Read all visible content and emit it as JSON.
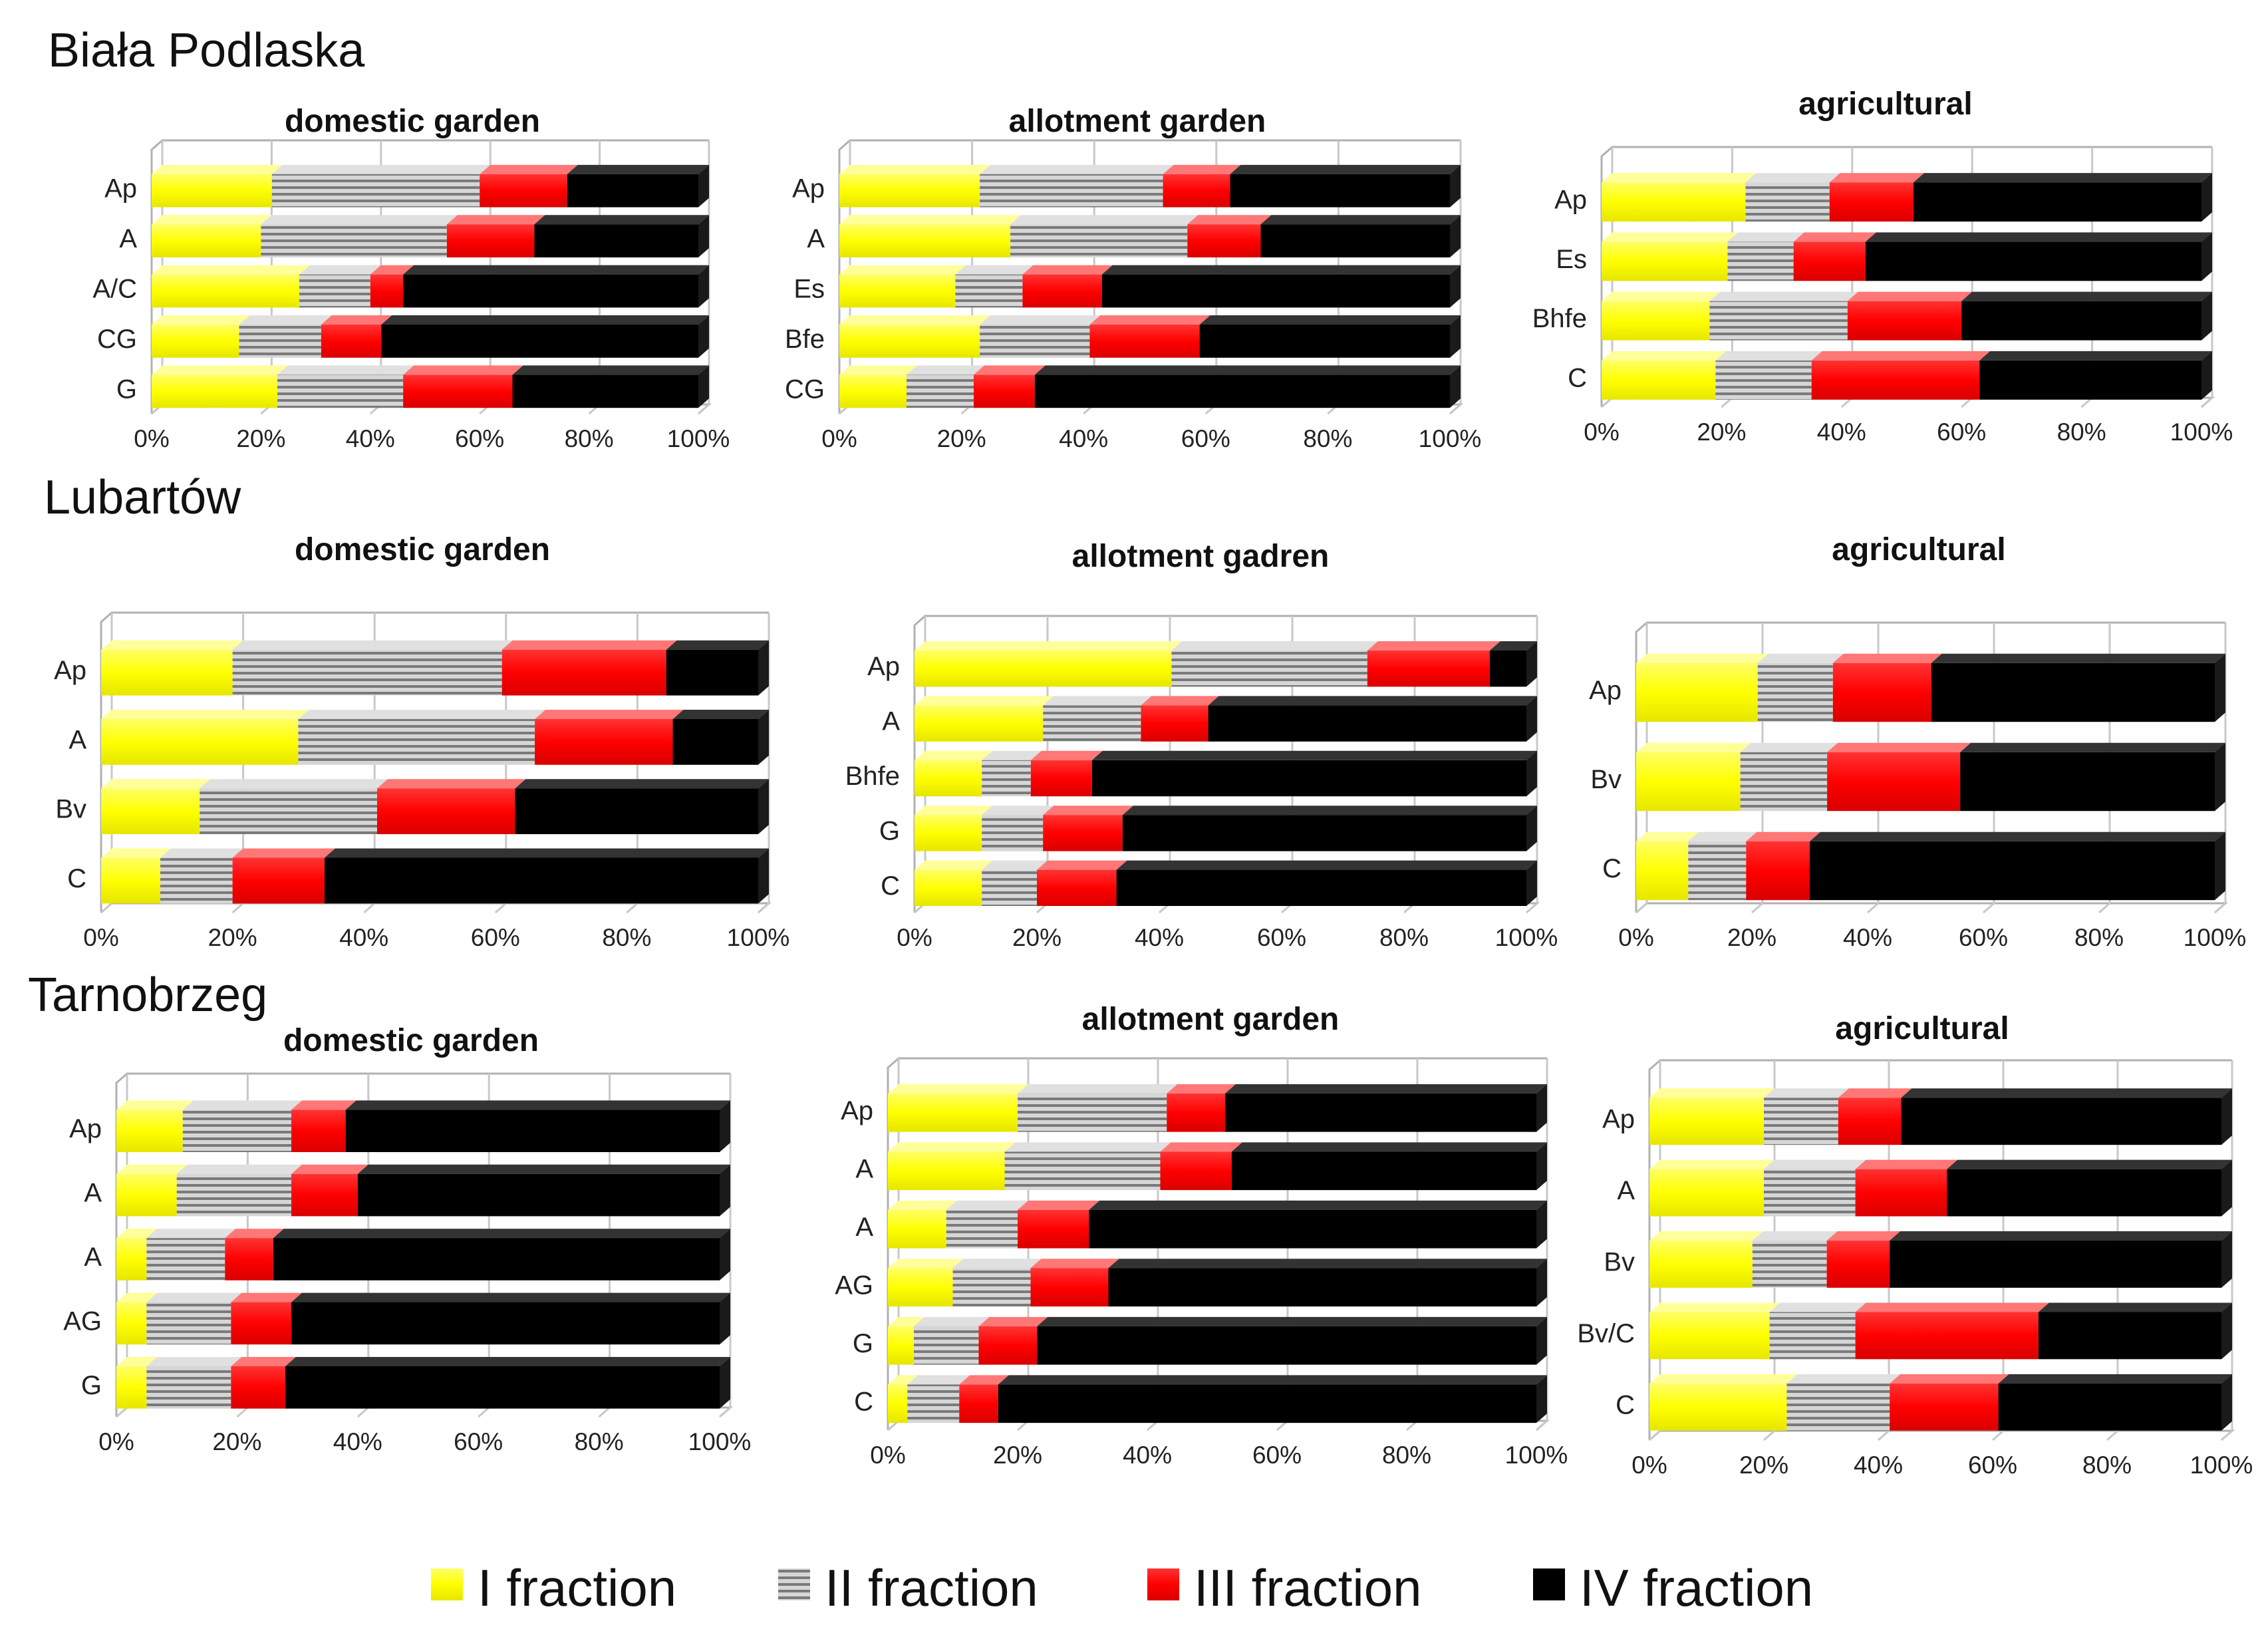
{
  "figure": {
    "legend": [
      {
        "label": "I fraction",
        "color": "#ffff00"
      },
      {
        "label": "II fraction",
        "color": "#a8a8a8"
      },
      {
        "label": "III fraction",
        "color": "#ff0000"
      },
      {
        "label": "IV fraction",
        "color": "#000000"
      }
    ]
  },
  "chart_data": [
    {
      "type": "bar",
      "orientation": "horizontal",
      "stacked": "percent",
      "site": "Biała Podlaska",
      "title": "domestic garden",
      "categories": [
        "Ap",
        "A",
        "A/C",
        "CG",
        "G"
      ],
      "xlim": [
        0,
        100
      ],
      "xticks": [
        "0%",
        "20%",
        "40%",
        "60%",
        "80%",
        "100%"
      ],
      "series": [
        {
          "name": "I fraction",
          "values": [
            22,
            20,
            27,
            16,
            23
          ]
        },
        {
          "name": "II fraction",
          "values": [
            38,
            34,
            13,
            15,
            23
          ]
        },
        {
          "name": "III fraction",
          "values": [
            16,
            16,
            6,
            11,
            20
          ]
        },
        {
          "name": "IV fraction",
          "values": [
            24,
            30,
            54,
            58,
            34
          ]
        }
      ]
    },
    {
      "type": "bar",
      "orientation": "horizontal",
      "stacked": "percent",
      "site": "Biała Podlaska",
      "title": "allotment garden",
      "categories": [
        "Ap",
        "A",
        "Es",
        "Bfe",
        "CG"
      ],
      "xlim": [
        0,
        100
      ],
      "xticks": [
        "0%",
        "20%",
        "40%",
        "60%",
        "80%",
        "100%"
      ],
      "series": [
        {
          "name": "I fraction",
          "values": [
            23,
            28,
            19,
            23,
            11
          ]
        },
        {
          "name": "II fraction",
          "values": [
            30,
            29,
            11,
            18,
            11
          ]
        },
        {
          "name": "III fraction",
          "values": [
            11,
            12,
            13,
            18,
            10
          ]
        },
        {
          "name": "IV fraction",
          "values": [
            36,
            31,
            57,
            41,
            68
          ]
        }
      ]
    },
    {
      "type": "bar",
      "orientation": "horizontal",
      "stacked": "percent",
      "site": "Biała Podlaska",
      "title": "agricultural",
      "categories": [
        "Ap",
        "Es",
        "Bhfe",
        "C"
      ],
      "xlim": [
        0,
        100
      ],
      "xticks": [
        "0%",
        "20%",
        "40%",
        "60%",
        "80%",
        "100%"
      ],
      "series": [
        {
          "name": "I fraction",
          "values": [
            24,
            21,
            18,
            19
          ]
        },
        {
          "name": "II fraction",
          "values": [
            14,
            11,
            23,
            16
          ]
        },
        {
          "name": "III fraction",
          "values": [
            14,
            12,
            19,
            28
          ]
        },
        {
          "name": "IV fraction",
          "values": [
            48,
            56,
            40,
            37
          ]
        }
      ]
    },
    {
      "type": "bar",
      "orientation": "horizontal",
      "stacked": "percent",
      "site": "Lubartów",
      "title": "domestic garden",
      "categories": [
        "Ap",
        "A",
        "Bv",
        "C"
      ],
      "xlim": [
        0,
        100
      ],
      "xticks": [
        "0%",
        "20%",
        "40%",
        "60%",
        "80%",
        "100%"
      ],
      "series": [
        {
          "name": "I fraction",
          "values": [
            20,
            30,
            15,
            9
          ]
        },
        {
          "name": "II fraction",
          "values": [
            41,
            36,
            27,
            11
          ]
        },
        {
          "name": "III fraction",
          "values": [
            25,
            21,
            21,
            14
          ]
        },
        {
          "name": "IV fraction",
          "values": [
            14,
            13,
            37,
            66
          ]
        }
      ]
    },
    {
      "type": "bar",
      "orientation": "horizontal",
      "stacked": "percent",
      "site": "Lubartów",
      "title": "allotment gadren",
      "categories": [
        "Ap",
        "A",
        "Bhfe",
        "G",
        "C"
      ],
      "xlim": [
        0,
        100
      ],
      "xticks": [
        "0%",
        "20%",
        "40%",
        "60%",
        "80%",
        "100%"
      ],
      "series": [
        {
          "name": "I fraction",
          "values": [
            42,
            21,
            11,
            11,
            11
          ]
        },
        {
          "name": "II fraction",
          "values": [
            32,
            16,
            8,
            10,
            9
          ]
        },
        {
          "name": "III fraction",
          "values": [
            20,
            11,
            10,
            13,
            13
          ]
        },
        {
          "name": "IV fraction",
          "values": [
            6,
            52,
            71,
            66,
            67
          ]
        }
      ]
    },
    {
      "type": "bar",
      "orientation": "horizontal",
      "stacked": "percent",
      "site": "Lubartów",
      "title": "agricultural",
      "categories": [
        "Ap",
        "Bv",
        "C"
      ],
      "xlim": [
        0,
        100
      ],
      "xticks": [
        "0%",
        "20%",
        "40%",
        "60%",
        "80%",
        "100%"
      ],
      "series": [
        {
          "name": "I fraction",
          "values": [
            21,
            18,
            9
          ]
        },
        {
          "name": "II fraction",
          "values": [
            13,
            15,
            10
          ]
        },
        {
          "name": "III fraction",
          "values": [
            17,
            23,
            11
          ]
        },
        {
          "name": "IV fraction",
          "values": [
            49,
            44,
            70
          ]
        }
      ]
    },
    {
      "type": "bar",
      "orientation": "horizontal",
      "stacked": "percent",
      "site": "Tarnobrzeg",
      "title": "domestic garden",
      "categories": [
        "Ap",
        "A",
        "A",
        "AG",
        "G"
      ],
      "xlim": [
        0,
        100
      ],
      "xticks": [
        "0%",
        "20%",
        "40%",
        "60%",
        "80%",
        "100%"
      ],
      "series": [
        {
          "name": "I fraction",
          "values": [
            11,
            10,
            5,
            5,
            5
          ]
        },
        {
          "name": "II fraction",
          "values": [
            18,
            19,
            13,
            14,
            14
          ]
        },
        {
          "name": "III fraction",
          "values": [
            9,
            11,
            8,
            10,
            9
          ]
        },
        {
          "name": "IV fraction",
          "values": [
            62,
            60,
            74,
            71,
            72
          ]
        }
      ]
    },
    {
      "type": "bar",
      "orientation": "horizontal",
      "stacked": "percent",
      "site": "Tarnobrzeg",
      "title": "allotment garden",
      "categories": [
        "Ap",
        "A",
        "A",
        "AG",
        "G",
        "C"
      ],
      "xlim": [
        0,
        100
      ],
      "xticks": [
        "0%",
        "20%",
        "40%",
        "60%",
        "80%",
        "100%"
      ],
      "series": [
        {
          "name": "I fraction",
          "values": [
            20,
            18,
            9,
            10,
            4,
            3
          ]
        },
        {
          "name": "II fraction",
          "values": [
            23,
            24,
            11,
            12,
            10,
            8
          ]
        },
        {
          "name": "III fraction",
          "values": [
            9,
            11,
            11,
            12,
            9,
            6
          ]
        },
        {
          "name": "IV fraction",
          "values": [
            48,
            47,
            69,
            66,
            77,
            83
          ]
        }
      ]
    },
    {
      "type": "bar",
      "orientation": "horizontal",
      "stacked": "percent",
      "site": "Tarnobrzeg",
      "title": "agricultural",
      "categories": [
        "Ap",
        "A",
        "Bv",
        "Bv/C",
        "C"
      ],
      "xlim": [
        0,
        100
      ],
      "xticks": [
        "0%",
        "20%",
        "40%",
        "60%",
        "80%",
        "100%"
      ],
      "series": [
        {
          "name": "I fraction",
          "values": [
            20,
            20,
            18,
            21,
            24
          ]
        },
        {
          "name": "II fraction",
          "values": [
            13,
            16,
            13,
            15,
            18
          ]
        },
        {
          "name": "III fraction",
          "values": [
            11,
            16,
            11,
            32,
            19
          ]
        },
        {
          "name": "IV fraction",
          "values": [
            56,
            48,
            58,
            32,
            39
          ]
        }
      ]
    }
  ]
}
